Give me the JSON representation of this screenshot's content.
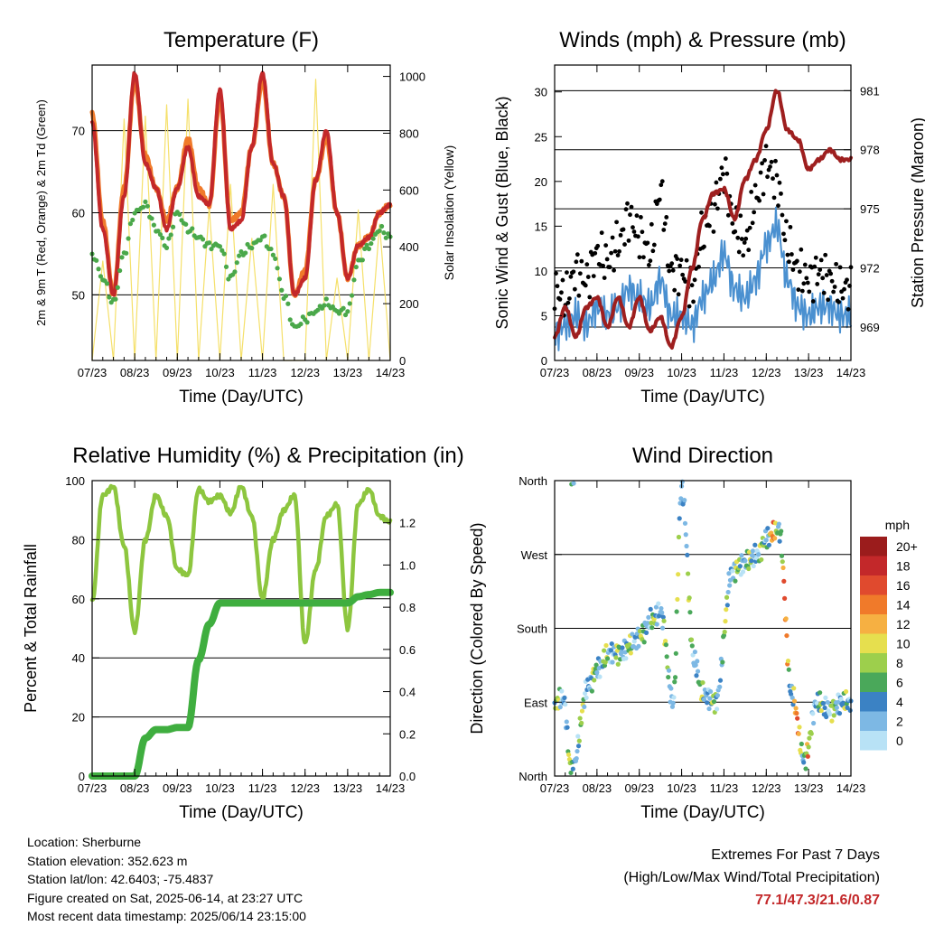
{
  "info": {
    "location": "Location: Sherburne",
    "elevation": "Station elevation: 352.623 m",
    "latlon": "Station lat/lon: 42.6403; -75.4837",
    "created": "Figure created on Sat, 2025-06-14, at 23:27 UTC",
    "timestamp": "Most recent data timestamp: 2025/06/14 23:15:00"
  },
  "extremes": {
    "title": "Extremes For Past 7 Days",
    "subtitle": "(High/Low/Max Wind/Total Precipitation)",
    "values": "77.1/47.3/21.6/0.87"
  },
  "colors": {
    "temp2m": "#c3282a",
    "temp9m": "#f07a2a",
    "dewpoint": "#4aa84a",
    "solar": "#f5e06a",
    "wind": "#4a90d0",
    "gust": "#000000",
    "pressure": "#9e1f1f",
    "rh": "#8dc63f",
    "precip": "#3fae3f"
  },
  "x_ticks": [
    "07/23",
    "08/23",
    "09/23",
    "10/23",
    "11/23",
    "12/23",
    "13/23",
    "14/23"
  ],
  "chart_data": [
    {
      "type": "line",
      "title": "Temperature (F)",
      "xlabel": "Time (Day/UTC)",
      "ylabel": "2m & 9m T (Red, Orange) & 2m Td (Green)",
      "ylabel_right": "Solar Insolation (Yellow)",
      "ylim": [
        42,
        78
      ],
      "y_ticks": [
        50,
        60,
        70
      ],
      "ylim_right": [
        0,
        1040
      ],
      "y_ticks_right": [
        0,
        200,
        400,
        600,
        800,
        1000
      ],
      "x": [
        0,
        0.25,
        0.5,
        0.75,
        1,
        1.25,
        1.5,
        1.75,
        2,
        2.25,
        2.5,
        2.75,
        3,
        3.25,
        3.5,
        3.75,
        4,
        4.25,
        4.5,
        4.75,
        5,
        5.25,
        5.5,
        5.75,
        6,
        6.25,
        6.5,
        6.75,
        7
      ],
      "series": [
        {
          "name": "2m T",
          "values": [
            71,
            58,
            50,
            62,
            77,
            66,
            63,
            58,
            63,
            68,
            62,
            61,
            75,
            58,
            59,
            68,
            77,
            66,
            62,
            50,
            52,
            64,
            70,
            60,
            52,
            56,
            57,
            60,
            61
          ]
        },
        {
          "name": "9m T",
          "values": [
            72,
            59,
            50,
            63,
            76,
            67,
            63,
            59,
            63,
            69,
            63,
            61,
            74,
            59,
            60,
            68,
            76,
            66,
            62,
            50,
            53,
            64,
            69,
            60,
            52,
            56,
            57,
            60,
            61
          ]
        },
        {
          "name": "2m Td",
          "values": [
            55,
            52,
            49,
            55,
            60,
            61,
            58,
            56,
            60,
            58,
            57,
            56,
            56,
            52,
            55,
            56,
            57,
            55,
            50,
            46,
            47,
            48,
            49,
            48,
            48,
            54,
            56,
            58,
            57
          ]
        },
        {
          "name": "Solar",
          "values": [
            0,
            350,
            0,
            850,
            0,
            860,
            0,
            900,
            0,
            920,
            0,
            540,
            0,
            620,
            0,
            430,
            0,
            620,
            0,
            0,
            0,
            990,
            0,
            290,
            0,
            530,
            0,
            480,
            0
          ]
        }
      ]
    },
    {
      "type": "line",
      "title": "Winds (mph) & Pressure (mb)",
      "xlabel": "Time (Day/UTC)",
      "ylabel": "Sonic Wind & Gust (Blue, Black)",
      "ylabel_right": "Station Pressure (Maroon)",
      "ylim": [
        0,
        33
      ],
      "y_ticks": [
        0,
        5,
        10,
        15,
        20,
        25,
        30
      ],
      "ylim_right": [
        967.3,
        982.3
      ],
      "y_ticks_right": [
        969,
        972,
        975,
        978,
        981
      ],
      "x": [
        0,
        0.25,
        0.5,
        0.75,
        1,
        1.25,
        1.5,
        1.75,
        2,
        2.25,
        2.5,
        2.75,
        3,
        3.25,
        3.5,
        3.75,
        4,
        4.25,
        4.5,
        4.75,
        5,
        5.25,
        5.5,
        5.75,
        6,
        6.25,
        6.5,
        6.75,
        7
      ],
      "series": [
        {
          "name": "Wind",
          "values": [
            3,
            4,
            5,
            4,
            6,
            5,
            6,
            8,
            7,
            6,
            9,
            5,
            5,
            4,
            7,
            9,
            12,
            8,
            7,
            9,
            13,
            15,
            9,
            6,
            5,
            6,
            6,
            5,
            5
          ]
        },
        {
          "name": "Gust",
          "values": [
            8,
            7,
            10,
            9,
            12,
            11,
            13,
            16,
            14,
            12,
            19,
            10,
            10,
            8,
            14,
            17,
            21,
            15,
            13,
            18,
            22,
            20,
            13,
            10,
            9,
            10,
            9,
            8,
            8
          ]
        },
        {
          "name": "Pressure",
          "values": [
            968.5,
            970,
            968.5,
            970,
            970.5,
            969,
            970.5,
            969,
            970.5,
            968.8,
            969.5,
            968,
            969.5,
            972,
            974.5,
            975.8,
            976,
            974.5,
            976.5,
            977.5,
            979,
            981,
            979,
            978.5,
            977,
            977.5,
            978,
            977.5,
            977.5
          ]
        }
      ]
    },
    {
      "type": "line",
      "title": "Relative Humidity (%) & Precipitation (in)",
      "xlabel": "Time (Day/UTC)",
      "ylabel": "Percent & Total Rainfall",
      "ylim": [
        0,
        100
      ],
      "y_ticks": [
        0,
        20,
        40,
        60,
        80,
        100
      ],
      "ylim_right": [
        0,
        1.4
      ],
      "y_ticks_right": [
        0.0,
        0.2,
        0.4,
        0.6,
        0.8,
        1.0,
        1.2
      ],
      "x": [
        0,
        0.25,
        0.5,
        0.75,
        1,
        1.25,
        1.5,
        1.75,
        2,
        2.25,
        2.5,
        2.75,
        3,
        3.25,
        3.5,
        3.75,
        4,
        4.25,
        4.5,
        4.75,
        5,
        5.25,
        5.5,
        5.75,
        6,
        6.25,
        6.5,
        6.75,
        7
      ],
      "series": [
        {
          "name": "RH",
          "values": [
            59,
            95,
            98,
            78,
            49,
            80,
            95,
            88,
            70,
            68,
            97,
            93,
            95,
            89,
            98,
            88,
            60,
            80,
            90,
            95,
            45,
            70,
            88,
            92,
            50,
            92,
            97,
            88,
            86
          ]
        },
        {
          "name": "Precip",
          "values": [
            0,
            0,
            0,
            0,
            0,
            0.18,
            0.22,
            0.22,
            0.23,
            0.23,
            0.55,
            0.72,
            0.82,
            0.82,
            0.82,
            0.82,
            0.82,
            0.82,
            0.82,
            0.82,
            0.82,
            0.82,
            0.82,
            0.82,
            0.82,
            0.85,
            0.86,
            0.87,
            0.87
          ]
        }
      ]
    },
    {
      "type": "scatter",
      "title": "Wind Direction",
      "xlabel": "Time (Day/UTC)",
      "ylabel": "Direction (Colored By Speed)",
      "y_ticks": [
        "North",
        "West",
        "South",
        "East",
        "North"
      ],
      "legend_title": "mph",
      "legend_labels": [
        "20+",
        "18",
        "16",
        "14",
        "12",
        "10",
        "8",
        "6",
        "4",
        "2",
        "0"
      ],
      "legend_colors": [
        "#9b1c1c",
        "#c3282a",
        "#e04a2e",
        "#f07a2a",
        "#f6b042",
        "#e6df4e",
        "#9dcf4c",
        "#4aa85a",
        "#3b82c4",
        "#7db8e4",
        "#b8e2f6"
      ],
      "legend_position": "right",
      "x": [
        0,
        0.2,
        0.4,
        0.8,
        1,
        1.3,
        1.6,
        1.8,
        2,
        2.3,
        2.5,
        2.8,
        3,
        3.3,
        3.5,
        3.8,
        4.2,
        4.5,
        4.8,
        5,
        5.3,
        5.6,
        5.9,
        6.2,
        6.5,
        6.8,
        7
      ],
      "y": [
        90,
        95,
        5,
        110,
        130,
        150,
        150,
        160,
        170,
        190,
        200,
        90,
        350,
        140,
        100,
        90,
        250,
        260,
        270,
        290,
        300,
        100,
        20,
        90,
        80,
        90,
        90
      ]
    }
  ]
}
